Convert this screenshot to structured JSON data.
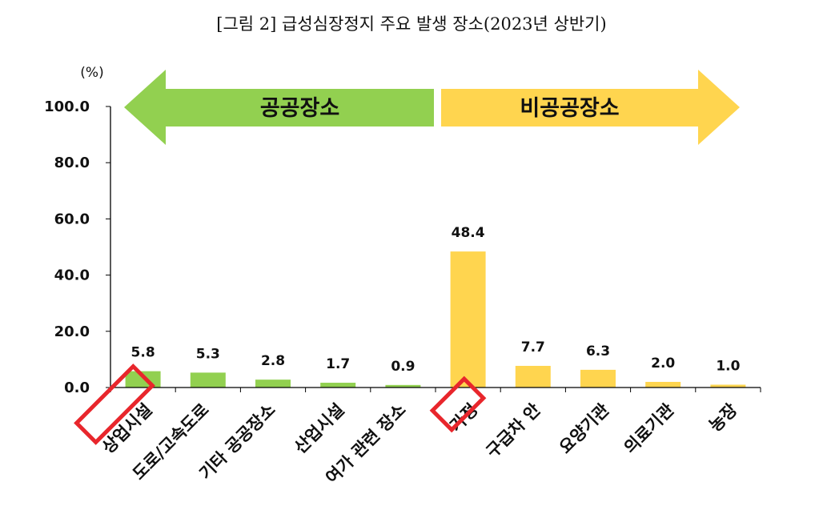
{
  "colors": {
    "public": "#92D050",
    "private": "#FFD54F",
    "highlight": "#E8262C",
    "axis": "#000000"
  },
  "chart_data": {
    "type": "bar",
    "title": "[그림 2] 급성심장정지 주요 발생 장소(2023년 상반기)",
    "unit": "(%)",
    "ylim": [
      0,
      100
    ],
    "yticks": [
      "0.0",
      "20.0",
      "40.0",
      "60.0",
      "80.0",
      "100.0"
    ],
    "ytick_values": [
      0,
      20,
      40,
      60,
      80,
      100
    ],
    "grid": false,
    "categories": [
      "상업시설",
      "도로/고속도로",
      "기타 공공장소",
      "산업시설",
      "여가 관련 장소",
      "가정",
      "구급차 안",
      "요양기관",
      "의료기관",
      "농장"
    ],
    "values": [
      5.8,
      5.3,
      2.8,
      1.7,
      0.9,
      48.4,
      7.7,
      6.3,
      2.0,
      1.0
    ],
    "value_labels": [
      "5.8",
      "5.3",
      "2.8",
      "1.7",
      "0.9",
      "48.4",
      "7.7",
      "6.3",
      "2.0",
      "1.0"
    ],
    "groups": [
      {
        "label": "공공장소",
        "color": "#92D050",
        "direction": "left",
        "members": [
          0,
          1,
          2,
          3,
          4
        ]
      },
      {
        "label": "비공공장소",
        "color": "#FFD54F",
        "direction": "right",
        "members": [
          5,
          6,
          7,
          8,
          9
        ]
      }
    ],
    "highlighted": [
      0,
      5
    ]
  }
}
